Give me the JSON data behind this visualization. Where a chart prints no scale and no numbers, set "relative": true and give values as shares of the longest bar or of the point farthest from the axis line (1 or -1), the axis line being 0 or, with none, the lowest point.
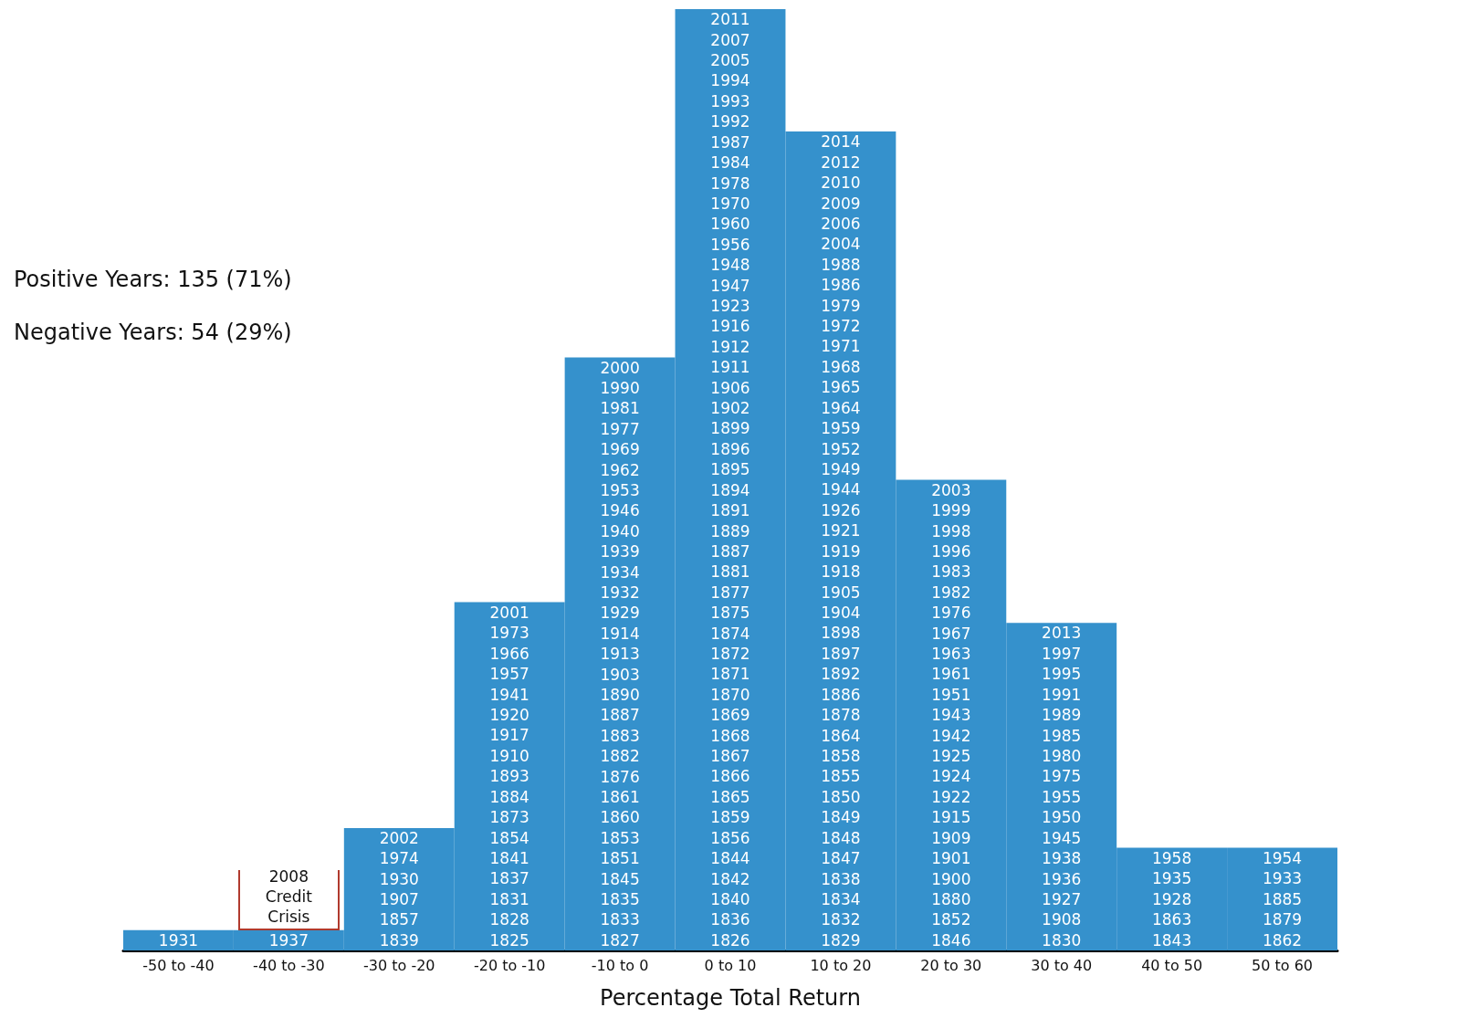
{
  "chart_data": {
    "type": "bar",
    "xlabel": "Percentage Total Return",
    "grid": false,
    "relative": true,
    "color": "#3591cc",
    "categories": [
      "-50 to -40",
      "-40 to -30",
      "-30 to -20",
      "-20 to -10",
      "-10 to 0",
      "0 to 10",
      "10 to 20",
      "20 to 30",
      "30 to 40",
      "40 to 50",
      "50 to 60"
    ],
    "values": [
      0.0217,
      0.0217,
      0.13,
      0.37,
      0.63,
      1,
      0.87,
      0.5,
      0.348,
      0.109,
      0.109
    ],
    "annotations": [
      "Positive Years: 135 (71%)",
      "Negative Years: 54 (29%)",
      "2008 Credit Crisis",
      "1931",
      "1937",
      "1839",
      "1857",
      "1907",
      "1930",
      "1974",
      "2002",
      "1825",
      "1828",
      "1831",
      "1837",
      "1841",
      "1854",
      "1873",
      "1884",
      "1893",
      "1910",
      "1917",
      "1920",
      "1941",
      "1957",
      "1966",
      "1973",
      "2001",
      "1827",
      "1833",
      "1835",
      "1845",
      "1851",
      "1853",
      "1860",
      "1861",
      "1876",
      "1882",
      "1883",
      "1887",
      "1890",
      "1903",
      "1913",
      "1914",
      "1929",
      "1932",
      "1934",
      "1939",
      "1940",
      "1946",
      "1953",
      "1962",
      "1969",
      "1977",
      "1981",
      "1990",
      "2000",
      "1826",
      "1836",
      "1840",
      "1842",
      "1844",
      "1856",
      "1859",
      "1865",
      "1866",
      "1867",
      "1868",
      "1869",
      "1870",
      "1871",
      "1872",
      "1874",
      "1875",
      "1877",
      "1881",
      "1887",
      "1889",
      "1891",
      "1894",
      "1895",
      "1896",
      "1899",
      "1902",
      "1906",
      "1911",
      "1912",
      "1916",
      "1923",
      "1947",
      "1948",
      "1956",
      "1960",
      "1970",
      "1978",
      "1984",
      "1987",
      "1992",
      "1993",
      "1994",
      "2005",
      "2007",
      "2011",
      "1829",
      "1832",
      "1834",
      "1838",
      "1847",
      "1848",
      "1849",
      "1850",
      "1855",
      "1858",
      "1864",
      "1878",
      "1886",
      "1892",
      "1897",
      "1898",
      "1904",
      "1905",
      "1918",
      "1919",
      "1921",
      "1926",
      "1944",
      "1949",
      "1952",
      "1959",
      "1964",
      "1965",
      "1968",
      "1971",
      "1972",
      "1979",
      "1986",
      "1988",
      "2004",
      "2006",
      "2009",
      "2010",
      "2012",
      "2014",
      "1846",
      "1852",
      "1880",
      "1900",
      "1901",
      "1909",
      "1915",
      "1922",
      "1924",
      "1925",
      "1942",
      "1943",
      "1951",
      "1961",
      "1963",
      "1967",
      "1976",
      "1982",
      "1983",
      "1996",
      "1998",
      "1999",
      "2003",
      "1830",
      "1908",
      "1927",
      "1936",
      "1938",
      "1945",
      "1950",
      "1955",
      "1975",
      "1980",
      "1985",
      "1989",
      "1991",
      "1995",
      "1997",
      "2013",
      "1843",
      "1863",
      "1928",
      "1935",
      "1958",
      "1862",
      "1879",
      "1885",
      "1933",
      "1954"
    ]
  }
}
